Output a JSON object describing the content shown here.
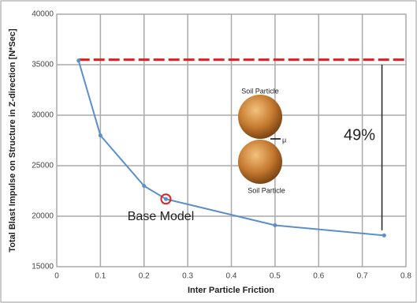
{
  "chart_data": {
    "type": "line",
    "x_label": "Inter Particle Friction",
    "y_label": "Total Blast Impulse on Structure in Z-direction [N*Sec]",
    "series": [
      {
        "name": null,
        "color": "#5b8fc9",
        "x": [
          0.05,
          0.1,
          0.2,
          0.25,
          0.5,
          0.75
        ],
        "values": [
          35400,
          28000,
          23000,
          21700,
          19100,
          18100
        ]
      }
    ],
    "xlim": [
      0,
      0.8
    ],
    "xticks": [
      0,
      0.1,
      0.2,
      0.3,
      0.4,
      0.5,
      0.6,
      0.7,
      0.8
    ],
    "ylim": [
      15000,
      40000
    ],
    "yticks": [
      15000,
      20000,
      25000,
      30000,
      35000,
      40000
    ],
    "grid": true,
    "reference_line": {
      "y": 35500,
      "x": [
        0.05,
        0.8
      ],
      "color": "#e02020"
    },
    "bracket": {
      "x": 0.745,
      "y": [
        35000,
        18600
      ]
    },
    "annotations": {
      "top_particle": "Soil Particle",
      "friction": "μ",
      "bottom_particle": "Soil Particle",
      "percent": "49%",
      "base_model": "Base Model"
    }
  }
}
